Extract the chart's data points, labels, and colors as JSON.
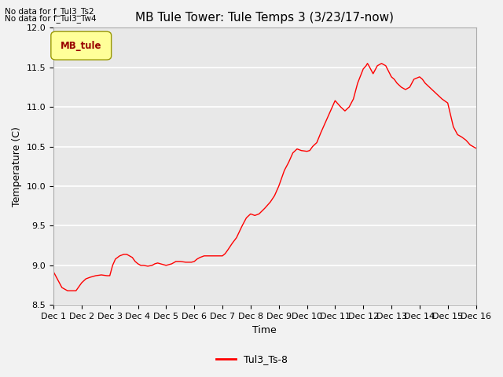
{
  "title": "MB Tule Tower: Tule Temps 3 (3/23/17-now)",
  "xlabel": "Time",
  "ylabel": "Temperature (C)",
  "ylim": [
    8.5,
    12.0
  ],
  "xlim": [
    0,
    15
  ],
  "xtick_labels": [
    "Dec 1",
    "Dec 2",
    "Dec 3",
    "Dec 4",
    "Dec 5",
    "Dec 6",
    "Dec 7",
    "Dec 8",
    "Dec 9",
    "Dec 10",
    "Dec 11",
    "Dec 12",
    "Dec 13",
    "Dec 14",
    "Dec 15",
    "Dec 16"
  ],
  "ytick_values": [
    8.5,
    9.0,
    9.5,
    10.0,
    10.5,
    11.0,
    11.5,
    12.0
  ],
  "line_color": "#ff0000",
  "line_label": "Tul3_Ts-8",
  "legend_label": "MB_tule",
  "legend_bg": "#ffff99",
  "legend_edge": "#999900",
  "no_data_text1": "No data for f_Tul3_Ts2",
  "no_data_text2": "No data for f_Tul3_Tw4",
  "fig_bg_color": "#f2f2f2",
  "plot_bg_color": "#e8e8e8",
  "grid_color": "#ffffff",
  "title_fontsize": 11,
  "axis_fontsize": 9,
  "tick_fontsize": 8,
  "waypoints_x": [
    0.0,
    0.15,
    0.3,
    0.5,
    0.65,
    0.8,
    1.0,
    1.15,
    1.3,
    1.5,
    1.7,
    1.9,
    2.0,
    2.1,
    2.2,
    2.35,
    2.5,
    2.6,
    2.7,
    2.8,
    2.9,
    3.0,
    3.1,
    3.2,
    3.35,
    3.5,
    3.6,
    3.7,
    3.8,
    3.9,
    4.0,
    4.1,
    4.2,
    4.35,
    4.5,
    4.7,
    4.9,
    5.0,
    5.1,
    5.2,
    5.35,
    5.5,
    5.7,
    6.0,
    6.1,
    6.2,
    6.35,
    6.5,
    6.7,
    6.85,
    7.0,
    7.15,
    7.3,
    7.5,
    7.7,
    7.85,
    8.0,
    8.1,
    8.2,
    8.35,
    8.5,
    8.65,
    8.8,
    9.0,
    9.1,
    9.2,
    9.35,
    9.5,
    9.65,
    9.8,
    10.0,
    10.1,
    10.2,
    10.35,
    10.5,
    10.65,
    10.8,
    11.0,
    11.1,
    11.15,
    11.2,
    11.35,
    11.5,
    11.65,
    11.8,
    12.0,
    12.1,
    12.2,
    12.35,
    12.5,
    12.65,
    12.8,
    13.0,
    13.1,
    13.2,
    13.35,
    13.5,
    13.65,
    13.8,
    14.0,
    14.1,
    14.2,
    14.35,
    14.5,
    14.65,
    14.8,
    15.0
  ],
  "waypoints_y": [
    8.92,
    8.82,
    8.72,
    8.68,
    8.68,
    8.68,
    8.78,
    8.83,
    8.85,
    8.87,
    8.88,
    8.87,
    8.87,
    9.0,
    9.08,
    9.12,
    9.14,
    9.14,
    9.12,
    9.1,
    9.05,
    9.02,
    9.0,
    9.0,
    8.99,
    9.0,
    9.02,
    9.03,
    9.02,
    9.01,
    9.0,
    9.01,
    9.02,
    9.05,
    9.05,
    9.04,
    9.04,
    9.05,
    9.08,
    9.1,
    9.12,
    9.12,
    9.12,
    9.12,
    9.15,
    9.2,
    9.28,
    9.35,
    9.5,
    9.6,
    9.65,
    9.63,
    9.65,
    9.72,
    9.8,
    9.88,
    10.0,
    10.1,
    10.2,
    10.3,
    10.42,
    10.47,
    10.45,
    10.44,
    10.45,
    10.5,
    10.55,
    10.68,
    10.8,
    10.92,
    11.08,
    11.04,
    11.0,
    10.95,
    11.0,
    11.1,
    11.3,
    11.48,
    11.52,
    11.55,
    11.52,
    11.42,
    11.52,
    11.55,
    11.52,
    11.38,
    11.35,
    11.3,
    11.25,
    11.22,
    11.25,
    11.35,
    11.38,
    11.35,
    11.3,
    11.25,
    11.2,
    11.15,
    11.1,
    11.05,
    10.9,
    10.75,
    10.65,
    10.62,
    10.58,
    10.52,
    10.48
  ]
}
